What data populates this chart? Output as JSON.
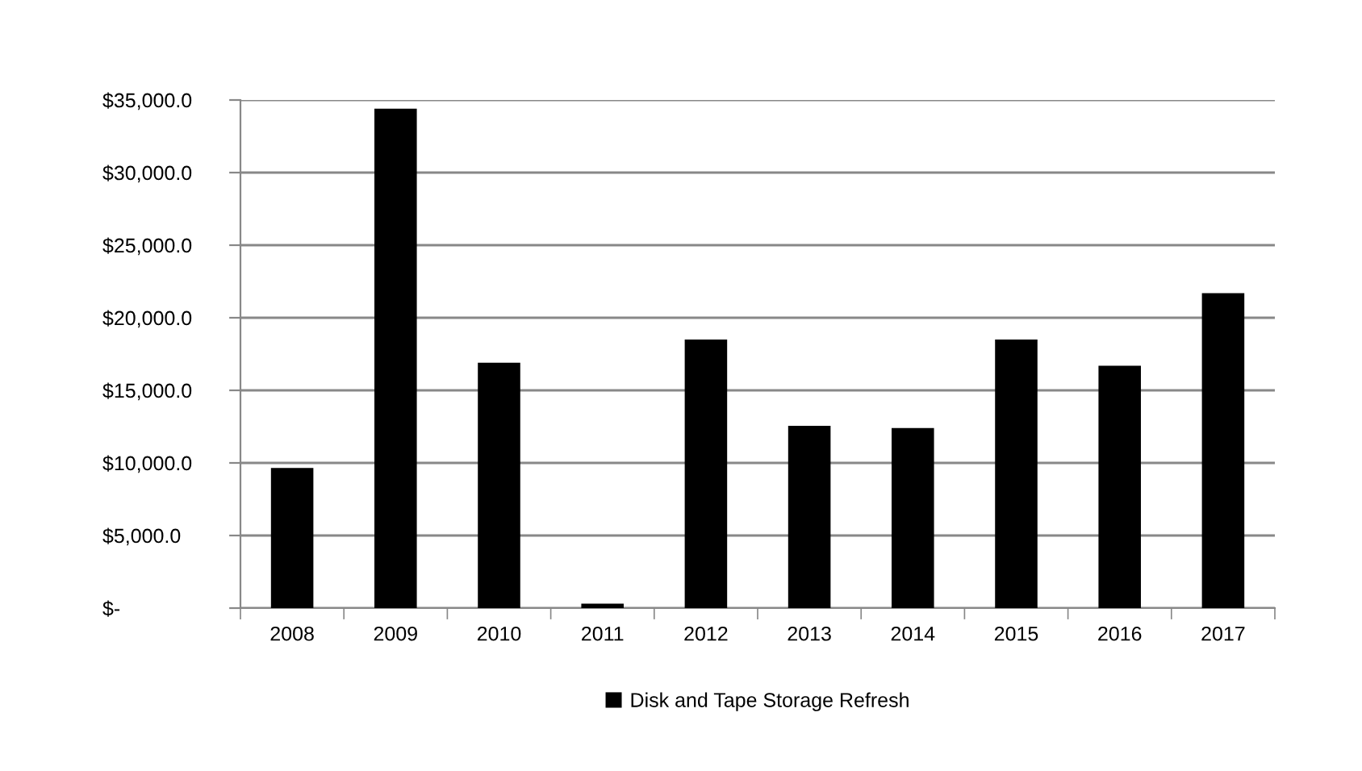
{
  "chart_data": {
    "type": "bar",
    "categories": [
      "2008",
      "2009",
      "2010",
      "2011",
      "2012",
      "2013",
      "2014",
      "2015",
      "2016",
      "2017"
    ],
    "series": [
      {
        "name": "Disk and Tape Storage Refresh",
        "color": "#000000",
        "values": [
          9650,
          34400,
          16900,
          300,
          18500,
          12550,
          12400,
          18500,
          16700,
          21700
        ]
      }
    ],
    "ylim": [
      0,
      35000
    ],
    "yticks": [
      {
        "value": 0,
        "label": "$-"
      },
      {
        "value": 5000,
        "label": "$5,000.0"
      },
      {
        "value": 10000,
        "label": "$10,000.0"
      },
      {
        "value": 15000,
        "label": "$15,000.0"
      },
      {
        "value": 20000,
        "label": "$20,000.0"
      },
      {
        "value": 25000,
        "label": "$25,000.0"
      },
      {
        "value": 30000,
        "label": "$30,000.0"
      },
      {
        "value": 35000,
        "label": "$35,000.0"
      }
    ],
    "grid": "y",
    "legend": "bottom"
  }
}
